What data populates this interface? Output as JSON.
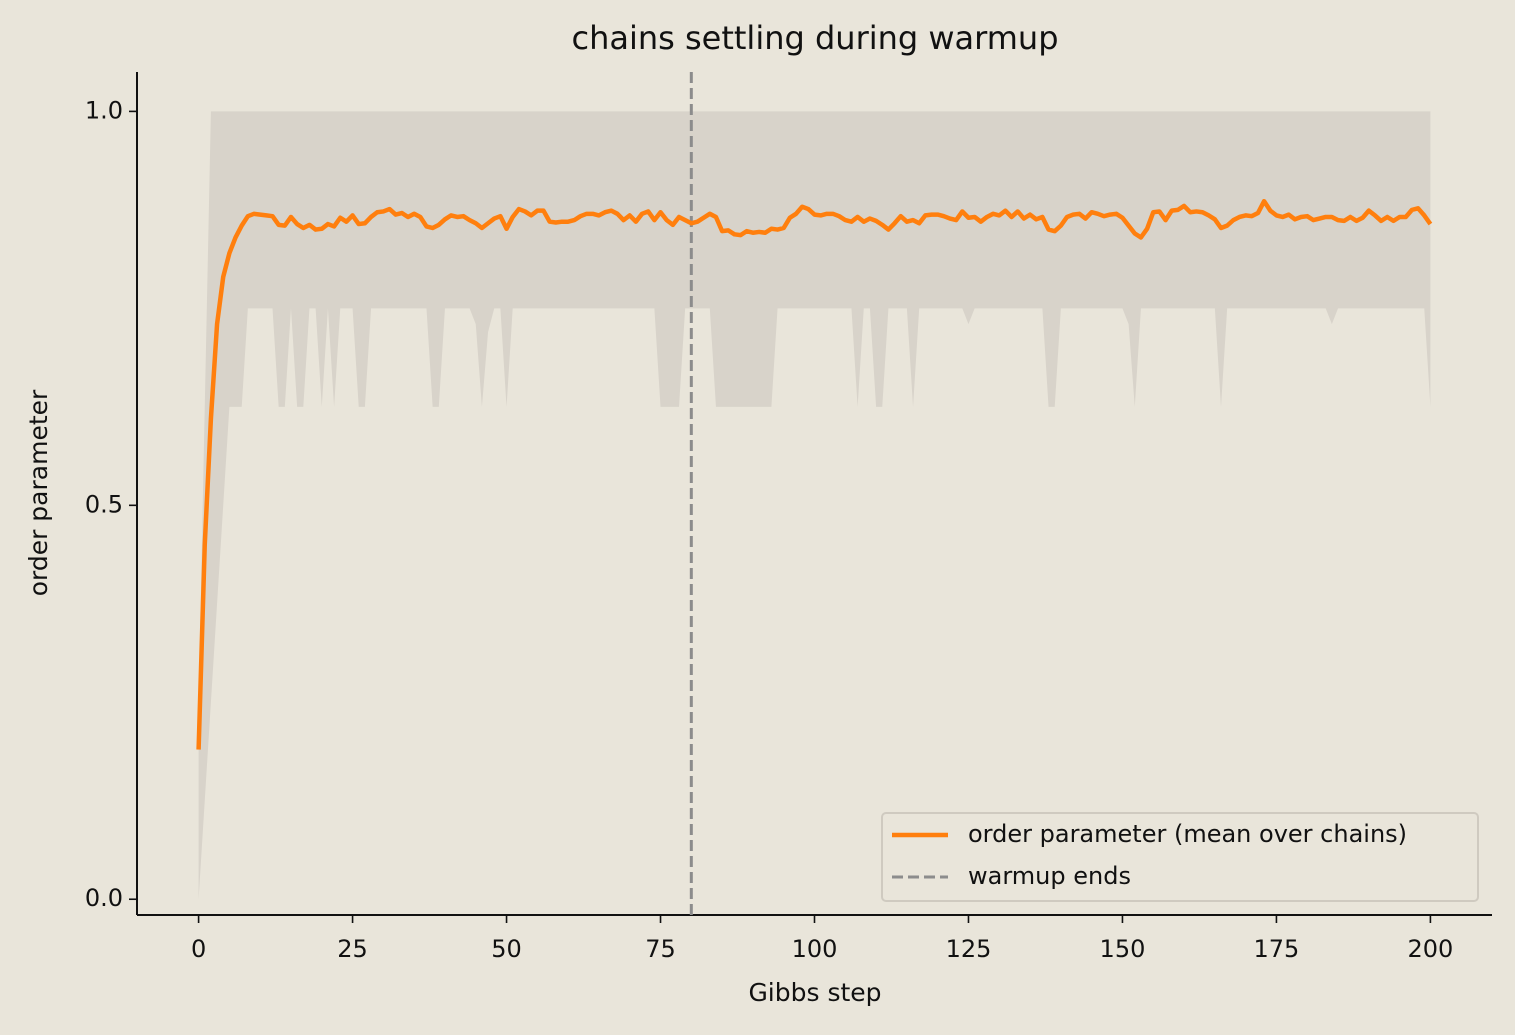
{
  "chart_data": {
    "type": "line",
    "title": "chains settling during warmup",
    "xlabel": "Gibbs step",
    "ylabel": "order parameter",
    "x": [
      0,
      1,
      2,
      3,
      4,
      5,
      6,
      7,
      8,
      9,
      10,
      11,
      12,
      13,
      14,
      15,
      16,
      17,
      18,
      19,
      20,
      21,
      22,
      23,
      24,
      25,
      26,
      27,
      28,
      29,
      30,
      31,
      32,
      33,
      34,
      35,
      36,
      37,
      38,
      39,
      40,
      41,
      42,
      43,
      44,
      45,
      46,
      47,
      48,
      49,
      50,
      51,
      52,
      53,
      54,
      55,
      56,
      57,
      58,
      59,
      60,
      61,
      62,
      63,
      64,
      65,
      66,
      67,
      68,
      69,
      70,
      71,
      72,
      73,
      74,
      75,
      76,
      77,
      78,
      79,
      80,
      81,
      82,
      83,
      84,
      85,
      86,
      87,
      88,
      89,
      90,
      91,
      92,
      93,
      94,
      95,
      96,
      97,
      98,
      99,
      100,
      101,
      102,
      103,
      104,
      105,
      106,
      107,
      108,
      109,
      110,
      111,
      112,
      113,
      114,
      115,
      116,
      117,
      118,
      119,
      120,
      121,
      122,
      123,
      124,
      125,
      126,
      127,
      128,
      129,
      130,
      131,
      132,
      133,
      134,
      135,
      136,
      137,
      138,
      139,
      140,
      141,
      142,
      143,
      144,
      145,
      146,
      147,
      148,
      149,
      150,
      151,
      152,
      153,
      154,
      155,
      156,
      157,
      158,
      159,
      160,
      161,
      162,
      163,
      164,
      165,
      166,
      167,
      168,
      169,
      170,
      171,
      172,
      173,
      174,
      175,
      176,
      177,
      178,
      179,
      180,
      181,
      182,
      183,
      184,
      185,
      186,
      187,
      188,
      189,
      190,
      191,
      192,
      193,
      194,
      195,
      196,
      197,
      198,
      199,
      200
    ],
    "series": [
      {
        "name": "order parameter (mean over chains)",
        "color": "#ff7f0e",
        "values": [
          0.19,
          0.45,
          0.61,
          0.73,
          0.79,
          0.82,
          0.84,
          0.855,
          0.867,
          0.87,
          0.869,
          0.868,
          0.867,
          0.856,
          0.855,
          0.866,
          0.857,
          0.852,
          0.856,
          0.85,
          0.851,
          0.857,
          0.854,
          0.865,
          0.86,
          0.868,
          0.857,
          0.858,
          0.866,
          0.872,
          0.873,
          0.876,
          0.869,
          0.871,
          0.866,
          0.87,
          0.866,
          0.854,
          0.852,
          0.856,
          0.863,
          0.868,
          0.866,
          0.867,
          0.862,
          0.858,
          0.852,
          0.858,
          0.864,
          0.867,
          0.851,
          0.866,
          0.876,
          0.873,
          0.868,
          0.874,
          0.874,
          0.86,
          0.859,
          0.86,
          0.86,
          0.862,
          0.867,
          0.87,
          0.87,
          0.868,
          0.872,
          0.874,
          0.87,
          0.862,
          0.868,
          0.86,
          0.87,
          0.873,
          0.862,
          0.872,
          0.862,
          0.856,
          0.866,
          0.862,
          0.858,
          0.86,
          0.865,
          0.87,
          0.866,
          0.848,
          0.849,
          0.844,
          0.843,
          0.848,
          0.846,
          0.847,
          0.846,
          0.851,
          0.85,
          0.852,
          0.865,
          0.87,
          0.879,
          0.876,
          0.869,
          0.868,
          0.87,
          0.87,
          0.867,
          0.862,
          0.86,
          0.866,
          0.86,
          0.864,
          0.861,
          0.856,
          0.85,
          0.858,
          0.867,
          0.86,
          0.862,
          0.858,
          0.868,
          0.869,
          0.869,
          0.867,
          0.864,
          0.862,
          0.873,
          0.865,
          0.866,
          0.86,
          0.866,
          0.87,
          0.868,
          0.874,
          0.866,
          0.873,
          0.864,
          0.869,
          0.863,
          0.866,
          0.85,
          0.848,
          0.855,
          0.866,
          0.869,
          0.87,
          0.864,
          0.872,
          0.87,
          0.867,
          0.869,
          0.87,
          0.865,
          0.855,
          0.845,
          0.84,
          0.851,
          0.872,
          0.873,
          0.862,
          0.874,
          0.875,
          0.88,
          0.872,
          0.873,
          0.872,
          0.868,
          0.863,
          0.852,
          0.855,
          0.862,
          0.866,
          0.868,
          0.867,
          0.871,
          0.886,
          0.874,
          0.868,
          0.866,
          0.869,
          0.863,
          0.866,
          0.867,
          0.862,
          0.864,
          0.866,
          0.866,
          0.862,
          0.861,
          0.866,
          0.861,
          0.865,
          0.874,
          0.868,
          0.861,
          0.866,
          0.861,
          0.866,
          0.866,
          0.875,
          0.877,
          0.868,
          0.857
        ]
      }
    ],
    "band": {
      "color": "#d8d3ca",
      "upper": [
        0.25,
        0.625,
        1,
        1,
        1,
        1,
        1,
        1,
        1,
        1,
        1,
        1,
        1,
        1,
        1,
        1,
        1,
        1,
        1,
        1,
        1,
        1,
        1,
        1,
        1,
        1,
        1,
        1,
        1,
        1,
        1,
        1,
        1,
        1,
        1,
        1,
        1,
        1,
        1,
        1,
        1,
        1,
        1,
        1,
        1,
        1,
        1,
        1,
        1,
        1,
        1,
        1,
        1,
        1,
        1,
        1,
        1,
        1,
        1,
        1,
        1,
        1,
        1,
        1,
        1,
        1,
        1,
        1,
        1,
        1,
        1,
        1,
        1,
        1,
        1,
        1,
        1,
        1,
        1,
        1,
        1,
        1,
        1,
        1,
        1,
        1,
        1,
        1,
        1,
        1,
        1,
        1,
        1,
        1,
        1,
        1,
        1,
        1,
        1,
        1,
        1,
        1,
        1,
        1,
        1,
        1,
        1,
        1,
        1,
        1,
        1,
        1,
        1,
        1,
        1,
        1,
        1,
        1,
        1,
        1,
        1,
        1,
        1,
        1,
        1,
        1,
        1,
        1,
        1,
        1,
        1,
        1,
        1,
        1,
        1,
        1,
        1,
        1,
        1,
        1,
        1,
        1,
        1,
        1,
        1,
        1,
        1,
        1,
        1,
        1,
        1,
        1,
        1,
        1,
        1,
        1,
        1,
        1,
        1,
        1,
        1,
        1,
        1,
        1,
        1,
        1,
        1,
        1,
        1,
        1,
        1,
        1,
        1,
        1,
        1,
        1,
        1,
        1,
        1,
        1,
        1,
        1,
        1,
        1,
        1,
        1,
        1,
        1,
        1,
        1,
        1,
        1,
        1,
        1,
        1,
        1,
        1,
        1,
        1,
        1,
        1
      ],
      "lower": [
        0,
        0.125,
        0.25,
        0.375,
        0.5,
        0.625,
        0.625,
        0.625,
        0.75,
        0.75,
        0.75,
        0.75,
        0.75,
        0.625,
        0.625,
        0.75,
        0.625,
        0.625,
        0.75,
        0.75,
        0.625,
        0.75,
        0.625,
        0.75,
        0.75,
        0.75,
        0.625,
        0.625,
        0.75,
        0.75,
        0.75,
        0.75,
        0.75,
        0.75,
        0.75,
        0.75,
        0.75,
        0.75,
        0.625,
        0.625,
        0.75,
        0.75,
        0.75,
        0.75,
        0.75,
        0.73,
        0.625,
        0.72,
        0.75,
        0.75,
        0.625,
        0.75,
        0.75,
        0.75,
        0.75,
        0.75,
        0.75,
        0.75,
        0.75,
        0.75,
        0.75,
        0.75,
        0.75,
        0.75,
        0.75,
        0.75,
        0.75,
        0.75,
        0.75,
        0.75,
        0.75,
        0.75,
        0.75,
        0.75,
        0.75,
        0.625,
        0.625,
        0.625,
        0.625,
        0.75,
        0.75,
        0.75,
        0.75,
        0.75,
        0.625,
        0.625,
        0.625,
        0.625,
        0.625,
        0.625,
        0.625,
        0.625,
        0.625,
        0.625,
        0.75,
        0.75,
        0.75,
        0.75,
        0.75,
        0.75,
        0.75,
        0.75,
        0.75,
        0.75,
        0.75,
        0.75,
        0.75,
        0.625,
        0.75,
        0.75,
        0.625,
        0.625,
        0.75,
        0.75,
        0.75,
        0.75,
        0.625,
        0.75,
        0.75,
        0.75,
        0.75,
        0.75,
        0.75,
        0.75,
        0.75,
        0.73,
        0.75,
        0.75,
        0.75,
        0.75,
        0.75,
        0.75,
        0.75,
        0.75,
        0.75,
        0.75,
        0.75,
        0.75,
        0.625,
        0.625,
        0.75,
        0.75,
        0.75,
        0.75,
        0.75,
        0.75,
        0.75,
        0.75,
        0.75,
        0.75,
        0.75,
        0.73,
        0.625,
        0.75,
        0.75,
        0.75,
        0.75,
        0.75,
        0.75,
        0.75,
        0.75,
        0.75,
        0.75,
        0.75,
        0.75,
        0.75,
        0.625,
        0.75,
        0.75,
        0.75,
        0.75,
        0.75,
        0.75,
        0.75,
        0.75,
        0.75,
        0.75,
        0.75,
        0.75,
        0.75,
        0.75,
        0.75,
        0.75,
        0.75,
        0.73,
        0.75,
        0.75,
        0.75,
        0.75,
        0.75,
        0.75,
        0.75,
        0.75,
        0.75,
        0.75,
        0.75,
        0.75,
        0.75,
        0.75,
        0.75,
        0.625
      ]
    },
    "vline": {
      "value": 80,
      "name": "warmup ends",
      "color": "#8c8c8c"
    },
    "xlim": [
      -10,
      210
    ],
    "ylim": [
      -0.02,
      1.05
    ],
    "xticks": [
      0,
      25,
      50,
      75,
      100,
      125,
      150,
      175,
      200
    ],
    "yticks": [
      {
        "value": 0,
        "label": "0.0"
      },
      0.5,
      {
        "value": 1,
        "label": "1.0"
      }
    ],
    "legend": "lower right"
  }
}
